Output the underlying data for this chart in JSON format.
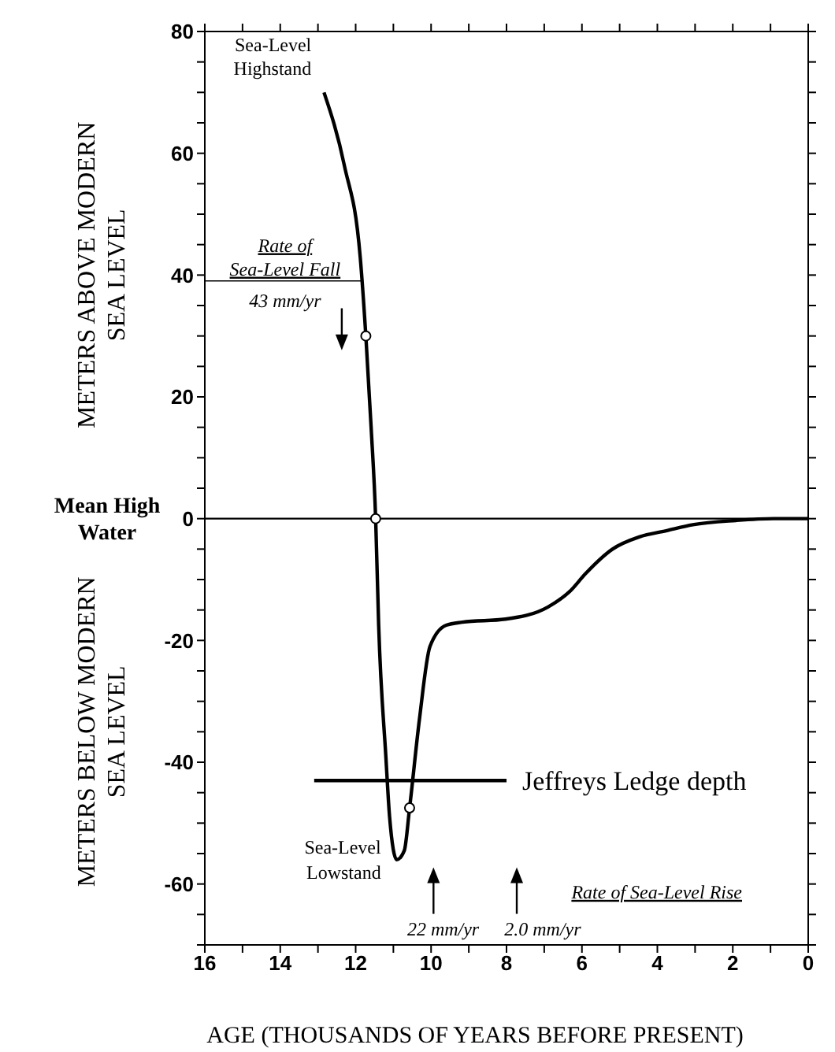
{
  "chart_data": {
    "type": "line",
    "xlabel": "AGE  (THOUSANDS OF YEARS BEFORE PRESENT)",
    "ylabel": "METERS ABOVE MODERN SEA LEVEL",
    "xlim": [
      16,
      0
    ],
    "xticks": [
      16,
      {
        "value": 15,
        "label": null
      },
      14,
      {
        "value": 13,
        "label": null
      },
      12,
      {
        "value": 11,
        "label": null
      },
      10,
      {
        "value": 9,
        "label": null
      },
      8,
      {
        "value": 7,
        "label": null
      },
      6,
      {
        "value": 5,
        "label": null
      },
      4,
      {
        "value": 3,
        "label": null
      },
      2,
      {
        "value": 1,
        "label": null
      },
      0
    ],
    "ylim": [
      -70,
      80
    ],
    "yticks": [
      {
        "value": -70,
        "label": null
      },
      {
        "value": -65,
        "label": null
      },
      -60,
      {
        "value": -55,
        "label": null
      },
      {
        "value": -50,
        "label": null
      },
      {
        "value": -45,
        "label": null
      },
      -40,
      {
        "value": -35,
        "label": null
      },
      {
        "value": -30,
        "label": null
      },
      {
        "value": -25,
        "label": null
      },
      -20,
      {
        "value": -15,
        "label": null
      },
      {
        "value": -10,
        "label": null
      },
      {
        "value": -5,
        "label": null
      },
      0,
      {
        "value": 5,
        "label": null
      },
      {
        "value": 10,
        "label": null
      },
      {
        "value": 15,
        "label": null
      },
      20,
      {
        "value": 25,
        "label": null
      },
      {
        "value": 30,
        "label": null
      },
      {
        "value": 35,
        "label": null
      },
      40,
      {
        "value": 45,
        "label": null
      },
      {
        "value": 50,
        "label": null
      },
      {
        "value": 55,
        "label": null
      },
      60,
      {
        "value": 65,
        "label": null
      },
      {
        "value": 70,
        "label": null
      },
      {
        "value": 75,
        "label": null
      },
      80
    ],
    "grid": false,
    "legend": "bottom right",
    "marker": "none",
    "line_style": "solid",
    "ref_lines": [
      {
        "axis": "y",
        "value": 0,
        "label": "Mean High Water",
        "color": "#000000"
      }
    ],
    "series": [
      {
        "color": "#000000",
        "x": [
          12.84,
          12.3,
          11.88,
          11.73,
          11.59,
          11.47,
          11.39,
          11.2,
          11.1,
          10.91,
          10.71,
          10.57,
          10.31,
          10.03,
          9.6,
          9.17,
          8.03,
          6.9,
          6.33,
          5.9,
          5.19,
          4.48,
          3.77,
          3.06,
          1.92,
          0.92,
          0
        ],
        "values": [
          70,
          58,
          43,
          30,
          15,
          0,
          -17.5,
          -39,
          -49,
          -56,
          -54.5,
          -47.5,
          -33,
          -21,
          -17.5,
          -17,
          -16.5,
          -14.5,
          -12,
          -9,
          -5,
          -3,
          -2,
          -1,
          -0.3,
          0,
          0
        ]
      },
      {
        "type": "scatter",
        "color": "#000000",
        "marker": "circle",
        "x": [
          11.73,
          11.47,
          10.57
        ],
        "values": [
          30,
          0,
          -47.5
        ]
      },
      {
        "type": "line",
        "name": "Jeffreys Ledge depth",
        "color": "#000000",
        "x": [
          13.1,
          8.0
        ],
        "values": [
          -43,
          -43
        ]
      }
    ],
    "annotations": [
      {
        "text": "Sea-Level Highstand",
        "x": 12.84,
        "y": 70
      },
      {
        "text": "Sea-Level Lowstand",
        "x": 10.91,
        "y": -56
      },
      "Rate of Sea-Level Fall",
      "43 mm/yr",
      "22 mm/yr",
      "2.0 mm/yr",
      "Rate of Sea-Level Rise",
      "METERS BELOW MODERN SEA LEVEL"
    ]
  }
}
